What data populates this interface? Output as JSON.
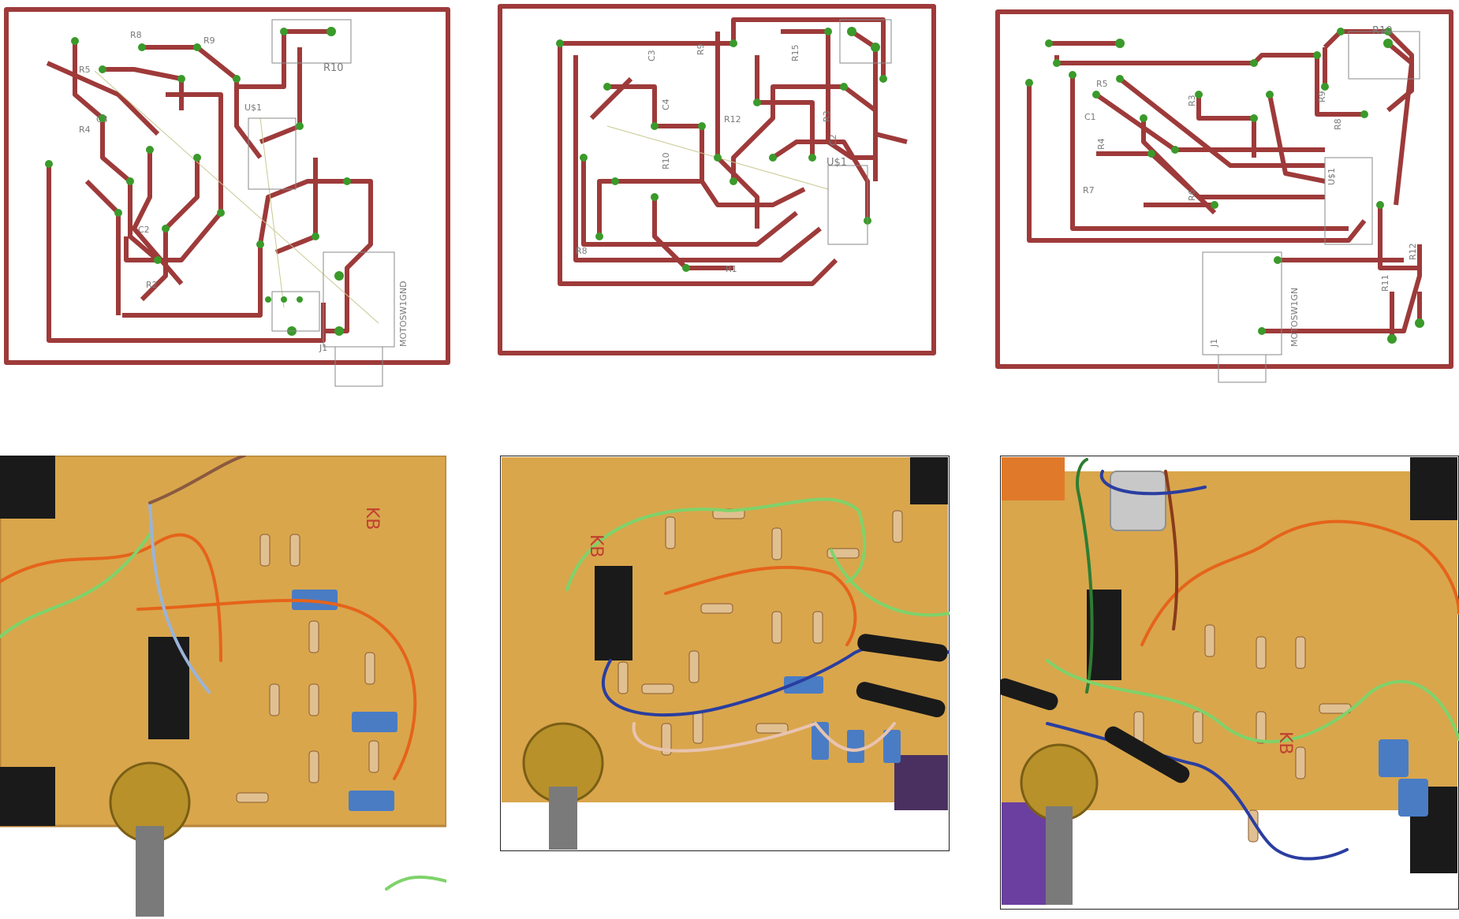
{
  "colors": {
    "trace": "#9e3a3a",
    "pad": "#3a9a2a",
    "board": "#d8a34a",
    "silk": "#8a8a8a"
  },
  "layouts": [
    {
      "id": "layout-1",
      "labels": [
        "R10",
        "R9",
        "R8",
        "R5",
        "R4",
        "C3",
        "U$1",
        "R2",
        "C2",
        "J1",
        "MOTOSW1GND"
      ]
    },
    {
      "id": "layout-2",
      "labels": [
        "R9",
        "C3",
        "C4",
        "R15",
        "R12",
        "R10",
        "R3",
        "U$1",
        "R8",
        "C2",
        "R1"
      ]
    },
    {
      "id": "layout-3",
      "labels": [
        "R10",
        "R5",
        "C1",
        "R4",
        "R3",
        "R9",
        "R8",
        "R7",
        "R6",
        "U$1",
        "R11",
        "R12",
        "J1",
        "MOTOSW1GN"
      ]
    }
  ],
  "photos": [
    {
      "id": "photo-1",
      "marking": "KB"
    },
    {
      "id": "photo-2",
      "marking": "KB"
    },
    {
      "id": "photo-3",
      "marking": "KB"
    }
  ]
}
